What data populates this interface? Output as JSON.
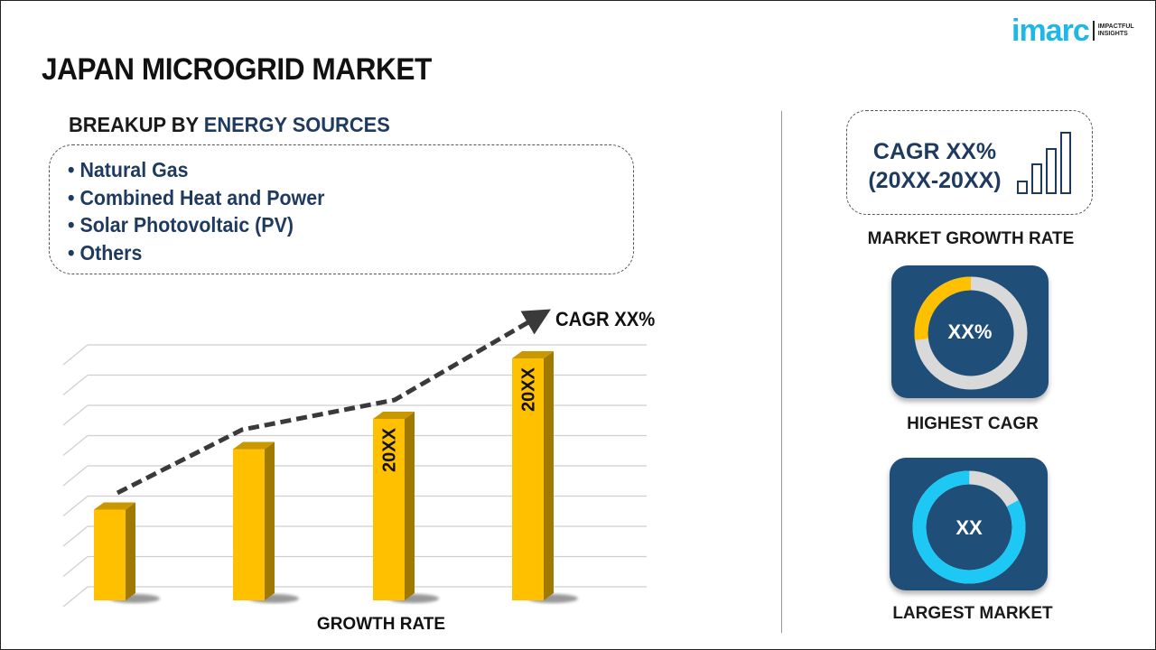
{
  "title": "JAPAN MICROGRID MARKET",
  "logo": {
    "brand": "imarc",
    "tagline_1": "IMPACTFUL",
    "tagline_2": "INSIGHTS"
  },
  "breakup": {
    "prefix": "BREAKUP BY",
    "highlight": "ENERGY SOURCES",
    "items": [
      "Natural Gas",
      "Combined Heat and Power",
      "Solar Photovoltaic (PV)",
      "Others"
    ]
  },
  "bar_graphic": {
    "trend_label": "CAGR XX%",
    "x_label": "GROWTH RATE",
    "bar_labels": [
      "",
      "",
      "20XX",
      "20XX"
    ],
    "relative_heights": [
      3,
      5,
      6,
      8
    ],
    "bar_color": "#ffc000"
  },
  "growth": {
    "line1": "CAGR XX%",
    "line2": "(20XX-20XX)",
    "label": "MARKET GROWTH RATE"
  },
  "highest": {
    "value": "XX%",
    "label": "HIGHEST CAGR",
    "fill_fraction": 0.27,
    "accent": "#ffc000"
  },
  "largest": {
    "value": "XX",
    "label": "LARGEST MARKET",
    "fill_fraction": 0.83,
    "accent": "#1ec8f5"
  },
  "colors": {
    "navy": "#1f3a5f",
    "card": "#1f4e79",
    "gray_ring": "#d9d9d9"
  }
}
